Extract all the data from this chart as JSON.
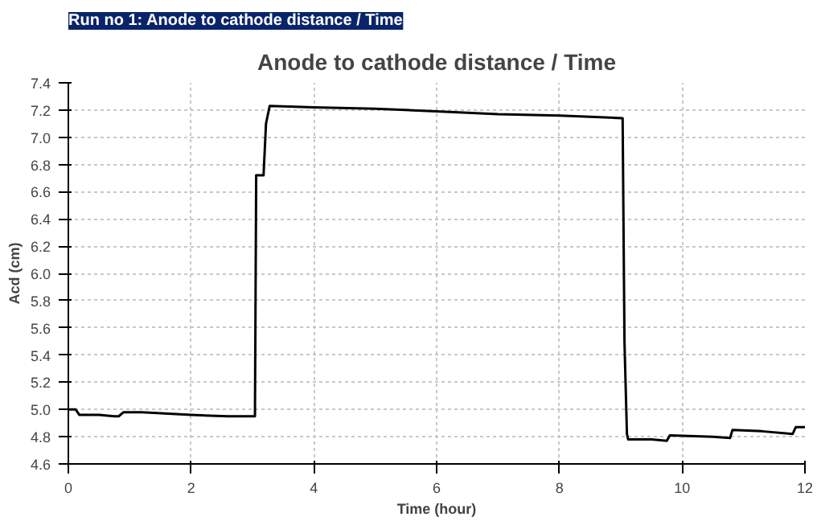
{
  "chart_data": {
    "type": "line",
    "title": "Anode to cathode distance / Time",
    "annotations": [
      "Run no 1: Anode to cathode distance / Time"
    ],
    "xlabel": "Time (hour)",
    "ylabel": "Acd (cm)",
    "series": [
      {
        "color": "#000000",
        "x": [
          0,
          0.12,
          0.18,
          0.5,
          0.75,
          0.82,
          0.9,
          1.2,
          2.0,
          2.6,
          3.0,
          3.04,
          3.06,
          3.1,
          3.18,
          3.22,
          3.28,
          4,
          5,
          6,
          7,
          8,
          8.5,
          9.03,
          9.06,
          9.1,
          9.12,
          9.5,
          9.75,
          9.8,
          10.5,
          10.78,
          10.82,
          11.3,
          11.8,
          11.85,
          12
        ],
        "values": [
          5.0,
          5.0,
          4.96,
          4.96,
          4.95,
          4.95,
          4.98,
          4.98,
          4.96,
          4.95,
          4.95,
          4.95,
          6.72,
          6.72,
          6.72,
          7.1,
          7.23,
          7.22,
          7.21,
          7.19,
          7.17,
          7.16,
          7.15,
          7.14,
          5.5,
          4.82,
          4.78,
          4.78,
          4.77,
          4.81,
          4.8,
          4.79,
          4.85,
          4.84,
          4.82,
          4.87,
          4.87
        ]
      }
    ],
    "xlim": [
      0,
      12
    ],
    "xticks": [
      0,
      2,
      4,
      6,
      8,
      10,
      12
    ],
    "ylim": [
      4.6,
      7.4
    ],
    "yticks": [
      4.6,
      4.8,
      {
        "value": 5,
        "label": "5.0"
      },
      5.2,
      5.4,
      5.6,
      5.8,
      {
        "value": 6,
        "label": "6.0"
      },
      6.2,
      6.4,
      6.6,
      6.8,
      {
        "value": 7,
        "label": "7.0"
      },
      7.2,
      7.4
    ],
    "grid": true,
    "marker": "none",
    "line_style": "solid"
  }
}
